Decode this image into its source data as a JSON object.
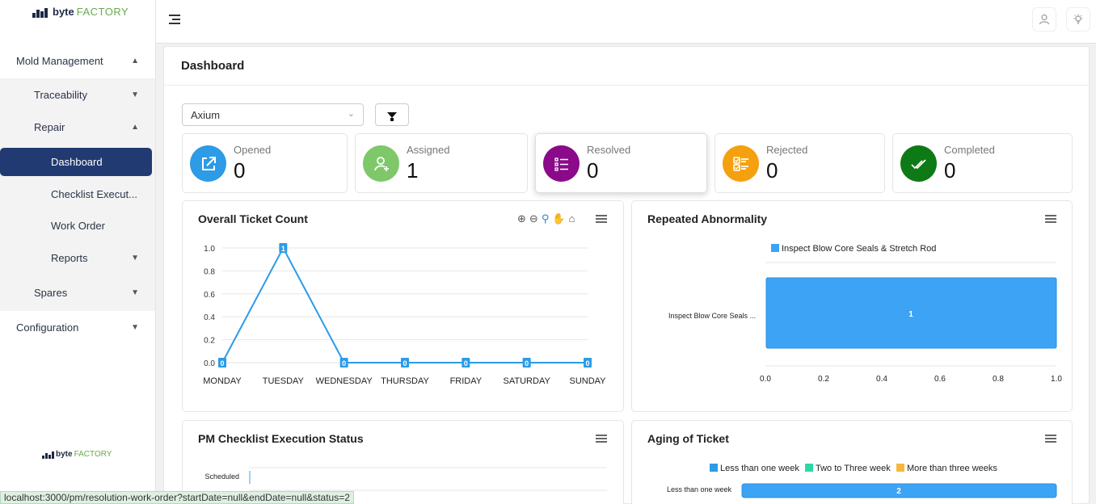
{
  "brand": {
    "bold": "byte",
    "light": "FACTORY"
  },
  "sidebar": {
    "items": [
      {
        "label": "Mold Management",
        "chev": "▲"
      },
      {
        "label": "Traceability",
        "chev": "▼"
      },
      {
        "label": "Repair",
        "chev": "▲"
      },
      {
        "label": "Dashboard"
      },
      {
        "label": "Checklist Execut..."
      },
      {
        "label": "Work Order"
      },
      {
        "label": "Reports",
        "chev": "▼"
      },
      {
        "label": "Spares",
        "chev": "▼"
      },
      {
        "label": "Configuration",
        "chev": "▼"
      }
    ]
  },
  "header": {
    "user_icon": "user-icon",
    "theme_icon": "lightbulb-icon"
  },
  "page": {
    "title": "Dashboard"
  },
  "filter": {
    "plant_value": "Axium"
  },
  "stats": [
    {
      "label": "Opened",
      "value": "0",
      "color": "#2d9be6",
      "icon": "external-link-icon"
    },
    {
      "label": "Assigned",
      "value": "1",
      "color": "#7ec86a",
      "icon": "user-plus-icon"
    },
    {
      "label": "Resolved",
      "value": "0",
      "color": "#8a0a8a",
      "icon": "list-icon"
    },
    {
      "label": "Rejected",
      "value": "0",
      "color": "#f5a00f",
      "icon": "checklist-icon"
    },
    {
      "label": "Completed",
      "value": "0",
      "color": "#0e7a16",
      "icon": "double-check-icon"
    }
  ],
  "cards": {
    "ticket_count": {
      "title": "Overall Ticket Count"
    },
    "abnormality": {
      "title": "Repeated Abnormality"
    },
    "pm_status": {
      "title": "PM Checklist Execution Status"
    },
    "aging": {
      "title": "Aging of Ticket"
    }
  },
  "chart_data": [
    {
      "type": "line",
      "title": "Overall Ticket Count",
      "categories": [
        "MONDAY",
        "TUESDAY",
        "WEDNESDAY",
        "THURSDAY",
        "FRIDAY",
        "SATURDAY",
        "SUNDAY"
      ],
      "values": [
        0,
        1,
        0,
        0,
        0,
        0,
        0
      ],
      "yticks": [
        "0.0",
        "0.2",
        "0.4",
        "0.6",
        "0.8",
        "1.0"
      ],
      "ylim": [
        0,
        1
      ],
      "grid": true,
      "color": "#2d9be6"
    },
    {
      "type": "bar",
      "orientation": "horizontal",
      "title": "Repeated Abnormality",
      "categories": [
        "Inspect Blow Core Seals ..."
      ],
      "series": [
        {
          "name": "Inspect Blow Core Seals & Stretch Rod",
          "values": [
            1
          ]
        }
      ],
      "xticks": [
        "0.0",
        "0.2",
        "0.4",
        "0.6",
        "0.8",
        "1.0"
      ],
      "xlim": [
        0,
        1
      ],
      "legend": "top",
      "color": "#3da3f5"
    },
    {
      "type": "bar",
      "orientation": "horizontal",
      "title": "PM Checklist Execution Status",
      "categories": [
        "Scheduled"
      ],
      "values": [
        0
      ]
    },
    {
      "type": "bar",
      "orientation": "horizontal",
      "title": "Aging of Ticket",
      "categories": [
        "Less than one week"
      ],
      "series": [
        {
          "name": "Less than one week",
          "values": [
            2
          ],
          "color": "#2d9be6"
        },
        {
          "name": "Two to Three week",
          "values": [
            0
          ],
          "color": "#2ed8a6"
        },
        {
          "name": "More than three weeks",
          "values": [
            0
          ],
          "color": "#f6b83a"
        }
      ],
      "legend": "top"
    }
  ],
  "status_bar": {
    "url": "localhost:3000/pm/resolution-work-order?startDate=null&endDate=null&status=2"
  }
}
